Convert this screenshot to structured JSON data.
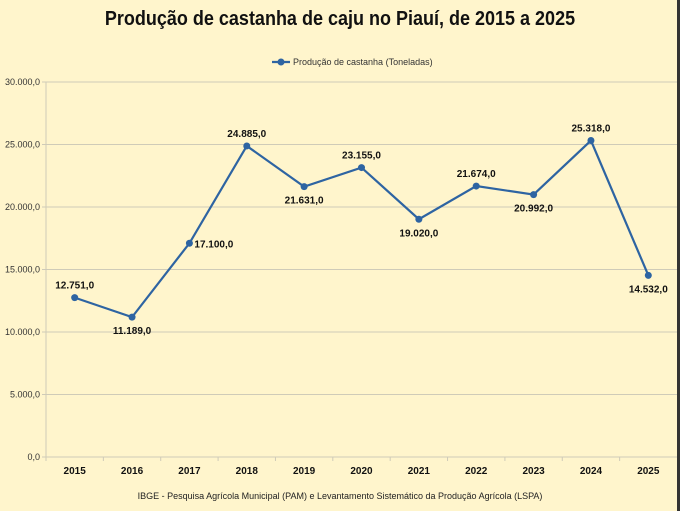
{
  "chart_data": {
    "type": "line",
    "title": "Produção de castanha de caju no Piauí, de 2015 a 2025",
    "categories": [
      "2015",
      "2016",
      "2017",
      "2018",
      "2019",
      "2020",
      "2021",
      "2022",
      "2023",
      "2024",
      "2025"
    ],
    "series": [
      {
        "name": "Produção de castanha (Toneladas)",
        "color": "#2e64a2",
        "values": [
          12751.0,
          11189.0,
          17100.0,
          24885.0,
          21631.0,
          23155.0,
          19020.0,
          21674.0,
          20992.0,
          25318.0,
          14532.0
        ],
        "labels": [
          "12.751,0",
          "11.189,0",
          "17.100,0",
          "24.885,0",
          "21.631,0",
          "23.155,0",
          "19.020,0",
          "21.674,0",
          "20.992,0",
          "25.318,0",
          "14.532,0"
        ]
      }
    ],
    "ylim": [
      0,
      30000
    ],
    "yticks": [
      0,
      5000,
      10000,
      15000,
      20000,
      25000,
      30000
    ],
    "ytick_labels": [
      "0,0",
      "5.000,0",
      "10.000,0",
      "15.000,0",
      "20.000,0",
      "25.000,0",
      "30.000,0"
    ],
    "grid": true,
    "legend": "top-center",
    "source": "IBGE - Pesquisa Agrícola Municipal (PAM) e Levantamento Sistemático da Produção Agrícola (LSPA)"
  }
}
